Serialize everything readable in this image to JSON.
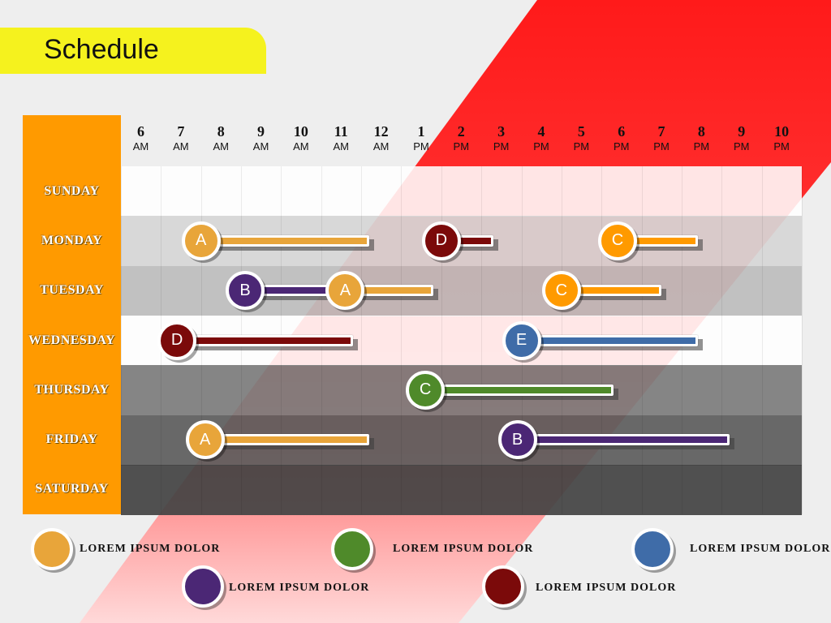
{
  "title": "Schedule",
  "days": [
    "SUNDAY",
    "MONDAY",
    "TUESDAY",
    "WEDNESDAY",
    "THURSDAY",
    "FRIDAY",
    "SATURDAY"
  ],
  "hours": [
    {
      "num": "6",
      "ampm": "AM"
    },
    {
      "num": "7",
      "ampm": "AM"
    },
    {
      "num": "8",
      "ampm": "AM"
    },
    {
      "num": "9",
      "ampm": "AM"
    },
    {
      "num": "10",
      "ampm": "AM"
    },
    {
      "num": "11",
      "ampm": "AM"
    },
    {
      "num": "12",
      "ampm": "AM"
    },
    {
      "num": "1",
      "ampm": "PM"
    },
    {
      "num": "2",
      "ampm": "PM"
    },
    {
      "num": "3",
      "ampm": "PM"
    },
    {
      "num": "4",
      "ampm": "PM"
    },
    {
      "num": "5",
      "ampm": "PM"
    },
    {
      "num": "6",
      "ampm": "PM"
    },
    {
      "num": "7",
      "ampm": "PM"
    },
    {
      "num": "8",
      "ampm": "PM"
    },
    {
      "num": "9",
      "ampm": "PM"
    },
    {
      "num": "10",
      "ampm": "PM"
    }
  ],
  "colors": {
    "A": "#e8a53a",
    "B": "#4b2775",
    "C": "#ff9a00",
    "D": "#7b0a0a",
    "E": "#3f6ca8",
    "G": "#4f8a2a"
  },
  "row_colors": [
    "#ffffff",
    "#d6d6d6",
    "#bdbdbd",
    "#ffffff",
    "#7d7d7d",
    "#5e5e5e",
    "#444444"
  ],
  "tasks": [
    {
      "day": 1,
      "label": "A",
      "color": "A",
      "start_hour": 8,
      "end_hour": 12.2
    },
    {
      "day": 1,
      "label": "D",
      "color": "D",
      "start_hour": 14,
      "end_hour": 15.3
    },
    {
      "day": 1,
      "label": "C",
      "color": "C",
      "start_hour": 18.4,
      "end_hour": 20.4
    },
    {
      "day": 2,
      "label": "B",
      "color": "B",
      "start_hour": 9.1,
      "end_hour": 11.5
    },
    {
      "day": 2,
      "label": "A",
      "color": "A",
      "start_hour": 11.6,
      "end_hour": 13.8
    },
    {
      "day": 2,
      "label": "C",
      "color": "C",
      "start_hour": 17.0,
      "end_hour": 19.5
    },
    {
      "day": 3,
      "label": "D",
      "color": "D",
      "start_hour": 7.4,
      "end_hour": 11.8
    },
    {
      "day": 3,
      "label": "E",
      "color": "E",
      "start_hour": 16.0,
      "end_hour": 20.4
    },
    {
      "day": 4,
      "label": "C",
      "color": "G",
      "start_hour": 13.6,
      "end_hour": 18.3
    },
    {
      "day": 5,
      "label": "A",
      "color": "A",
      "start_hour": 8.1,
      "end_hour": 12.2
    },
    {
      "day": 5,
      "label": "B",
      "color": "B",
      "start_hour": 15.9,
      "end_hour": 21.2
    }
  ],
  "legend": [
    {
      "color": "A",
      "text": "LOREM IPSUM DOLOR"
    },
    {
      "color": "G",
      "text": "LOREM IPSUM DOLOR"
    },
    {
      "color": "E",
      "text": "LOREM IPSUM DOLOR"
    },
    {
      "color": "B",
      "text": "LOREM IPSUM DOLOR"
    },
    {
      "color": "D",
      "text": "LOREM IPSUM DOLOR"
    }
  ],
  "accent": {
    "stripe": "#ff2020",
    "title_bg": "#f5f21e",
    "day_col": "#ff9a00"
  }
}
